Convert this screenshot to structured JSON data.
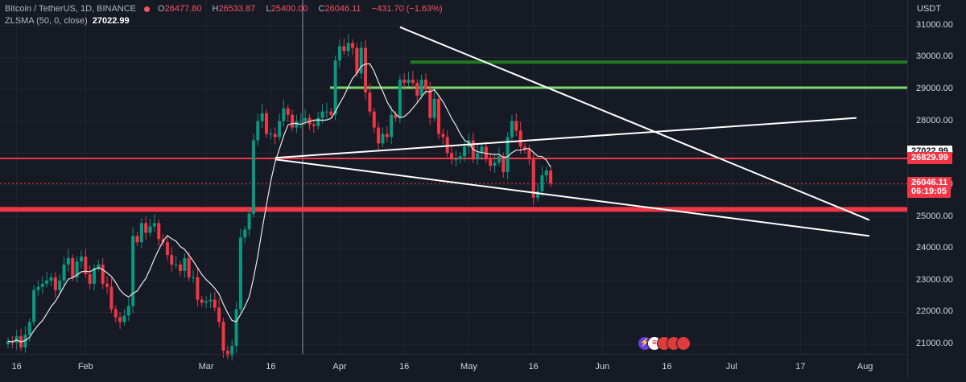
{
  "header": {
    "symbol": "Bitcoin / TetherUS, 1D, BINANCE",
    "ohlc": [
      {
        "k": "O",
        "v": "26477.80"
      },
      {
        "k": "H",
        "v": "26533.87"
      },
      {
        "k": "L",
        "v": "25400.00"
      },
      {
        "k": "C",
        "v": "26046.11"
      },
      {
        "k": "",
        "v": "−431.70 (−1.63%)"
      }
    ],
    "indicator_name": "ZLSMA (50, 0, close)",
    "indicator_value": "27022.99"
  },
  "currency": "USDT",
  "price_tags": [
    {
      "text": "27022.99",
      "price": 27022.99,
      "style": "white"
    },
    {
      "text": "26829.99",
      "price": 26829.99,
      "style": "red"
    },
    {
      "text": "26046.11",
      "price": 26046.11,
      "style": "red"
    },
    {
      "text": "06:19:05",
      "price": 25780,
      "style": "red"
    }
  ],
  "colors": {
    "up": "#089981",
    "down": "#f23645",
    "bg": "#161a25",
    "grid": "#222631"
  },
  "event_icons": [
    "lightning-icon",
    "us-flag-icon",
    "event-icon",
    "event-icon",
    "event-icon"
  ],
  "chart_data": {
    "type": "candlestick",
    "ylim": [
      20700,
      31800
    ],
    "yticks": [
      21000,
      22000,
      23000,
      24000,
      25000,
      26000,
      27000,
      28000,
      29000,
      30000,
      31000
    ],
    "ytick_labels": [
      "21000.00",
      "22000.00",
      "23000.00",
      "24000.00",
      "25000.00",
      "26000.00",
      "27000.00",
      "28000.00",
      "29000.00",
      "30000.00",
      "31000.00"
    ],
    "xticks": [
      {
        "label": "16",
        "date": "2023-01-16"
      },
      {
        "label": "Feb",
        "date": "2023-02-01"
      },
      {
        "label": "Mar",
        "date": "2023-03-01"
      },
      {
        "label": "16",
        "date": "2023-03-16"
      },
      {
        "label": "Apr",
        "date": "2023-04-01"
      },
      {
        "label": "16",
        "date": "2023-04-16"
      },
      {
        "label": "May",
        "date": "2023-05-01"
      },
      {
        "label": "16",
        "date": "2023-05-16"
      },
      {
        "label": "Jun",
        "date": "2023-06-01"
      },
      {
        "label": "16",
        "date": "2023-06-16"
      },
      {
        "label": "Jul",
        "date": "2023-07-01"
      },
      {
        "label": "17",
        "date": "2023-07-17"
      },
      {
        "label": "Aug",
        "date": "2023-08-01"
      }
    ],
    "x_start": "2023-01-14",
    "closes": [
      21100,
      21050,
      21250,
      20900,
      21300,
      21700,
      22700,
      22800,
      22900,
      23000,
      23100,
      22700,
      23000,
      23500,
      23700,
      23100,
      23600,
      23750,
      23200,
      22900,
      23400,
      23500,
      22900,
      22800,
      22100,
      21850,
      21700,
      21900,
      22200,
      24400,
      24200,
      24800,
      24500,
      24700,
      24800,
      24300,
      24200,
      23800,
      23500,
      23500,
      23300,
      23700,
      23100,
      23100,
      22400,
      22300,
      22350,
      22400,
      22150,
      21700,
      20800,
      20650,
      20950,
      22100,
      24350,
      24600,
      25100,
      27400,
      28000,
      28250,
      27600,
      27600,
      27500,
      28000,
      28400,
      28200,
      27800,
      28000,
      28000,
      28100,
      27900,
      27850,
      28100,
      28300,
      28300,
      28200,
      29900,
      30350,
      30200,
      30450,
      30300,
      29500,
      30300,
      28900,
      28300,
      27800,
      27300,
      27600,
      27500,
      28200,
      28100,
      29300,
      29200,
      29300,
      29200,
      28800,
      29300,
      29000,
      28100,
      28700,
      27600,
      27500,
      27000,
      26800,
      26800,
      26900,
      27200,
      27400,
      26800,
      27000,
      27200,
      26800,
      26600,
      26700,
      26900,
      26400,
      27500,
      28000,
      27700,
      27200,
      27100,
      26800,
      25600,
      25800,
      26300,
      26450,
      26046
    ],
    "overlay_lines": [
      {
        "name": "resistance-high",
        "price": 29850,
        "color": "#1f7a1f"
      },
      {
        "name": "resistance-mid",
        "price": 29050,
        "color": "#7bd86a"
      },
      {
        "name": "level-26829",
        "price": 26829.99,
        "color": "#f23645"
      },
      {
        "name": "support-25200",
        "price": 25230,
        "color": "#f23645"
      }
    ],
    "trendlines": [
      {
        "from": {
          "date": "2023-04-15",
          "price": 30950
        },
        "to": {
          "date": "2023-08-02",
          "price": 24900
        }
      },
      {
        "from": {
          "date": "2023-03-17",
          "price": 26800
        },
        "to": {
          "date": "2023-08-02",
          "price": 24400
        }
      },
      {
        "from": {
          "date": "2023-03-17",
          "price": 26850
        },
        "to": {
          "date": "2023-07-30",
          "price": 28100
        }
      }
    ]
  }
}
